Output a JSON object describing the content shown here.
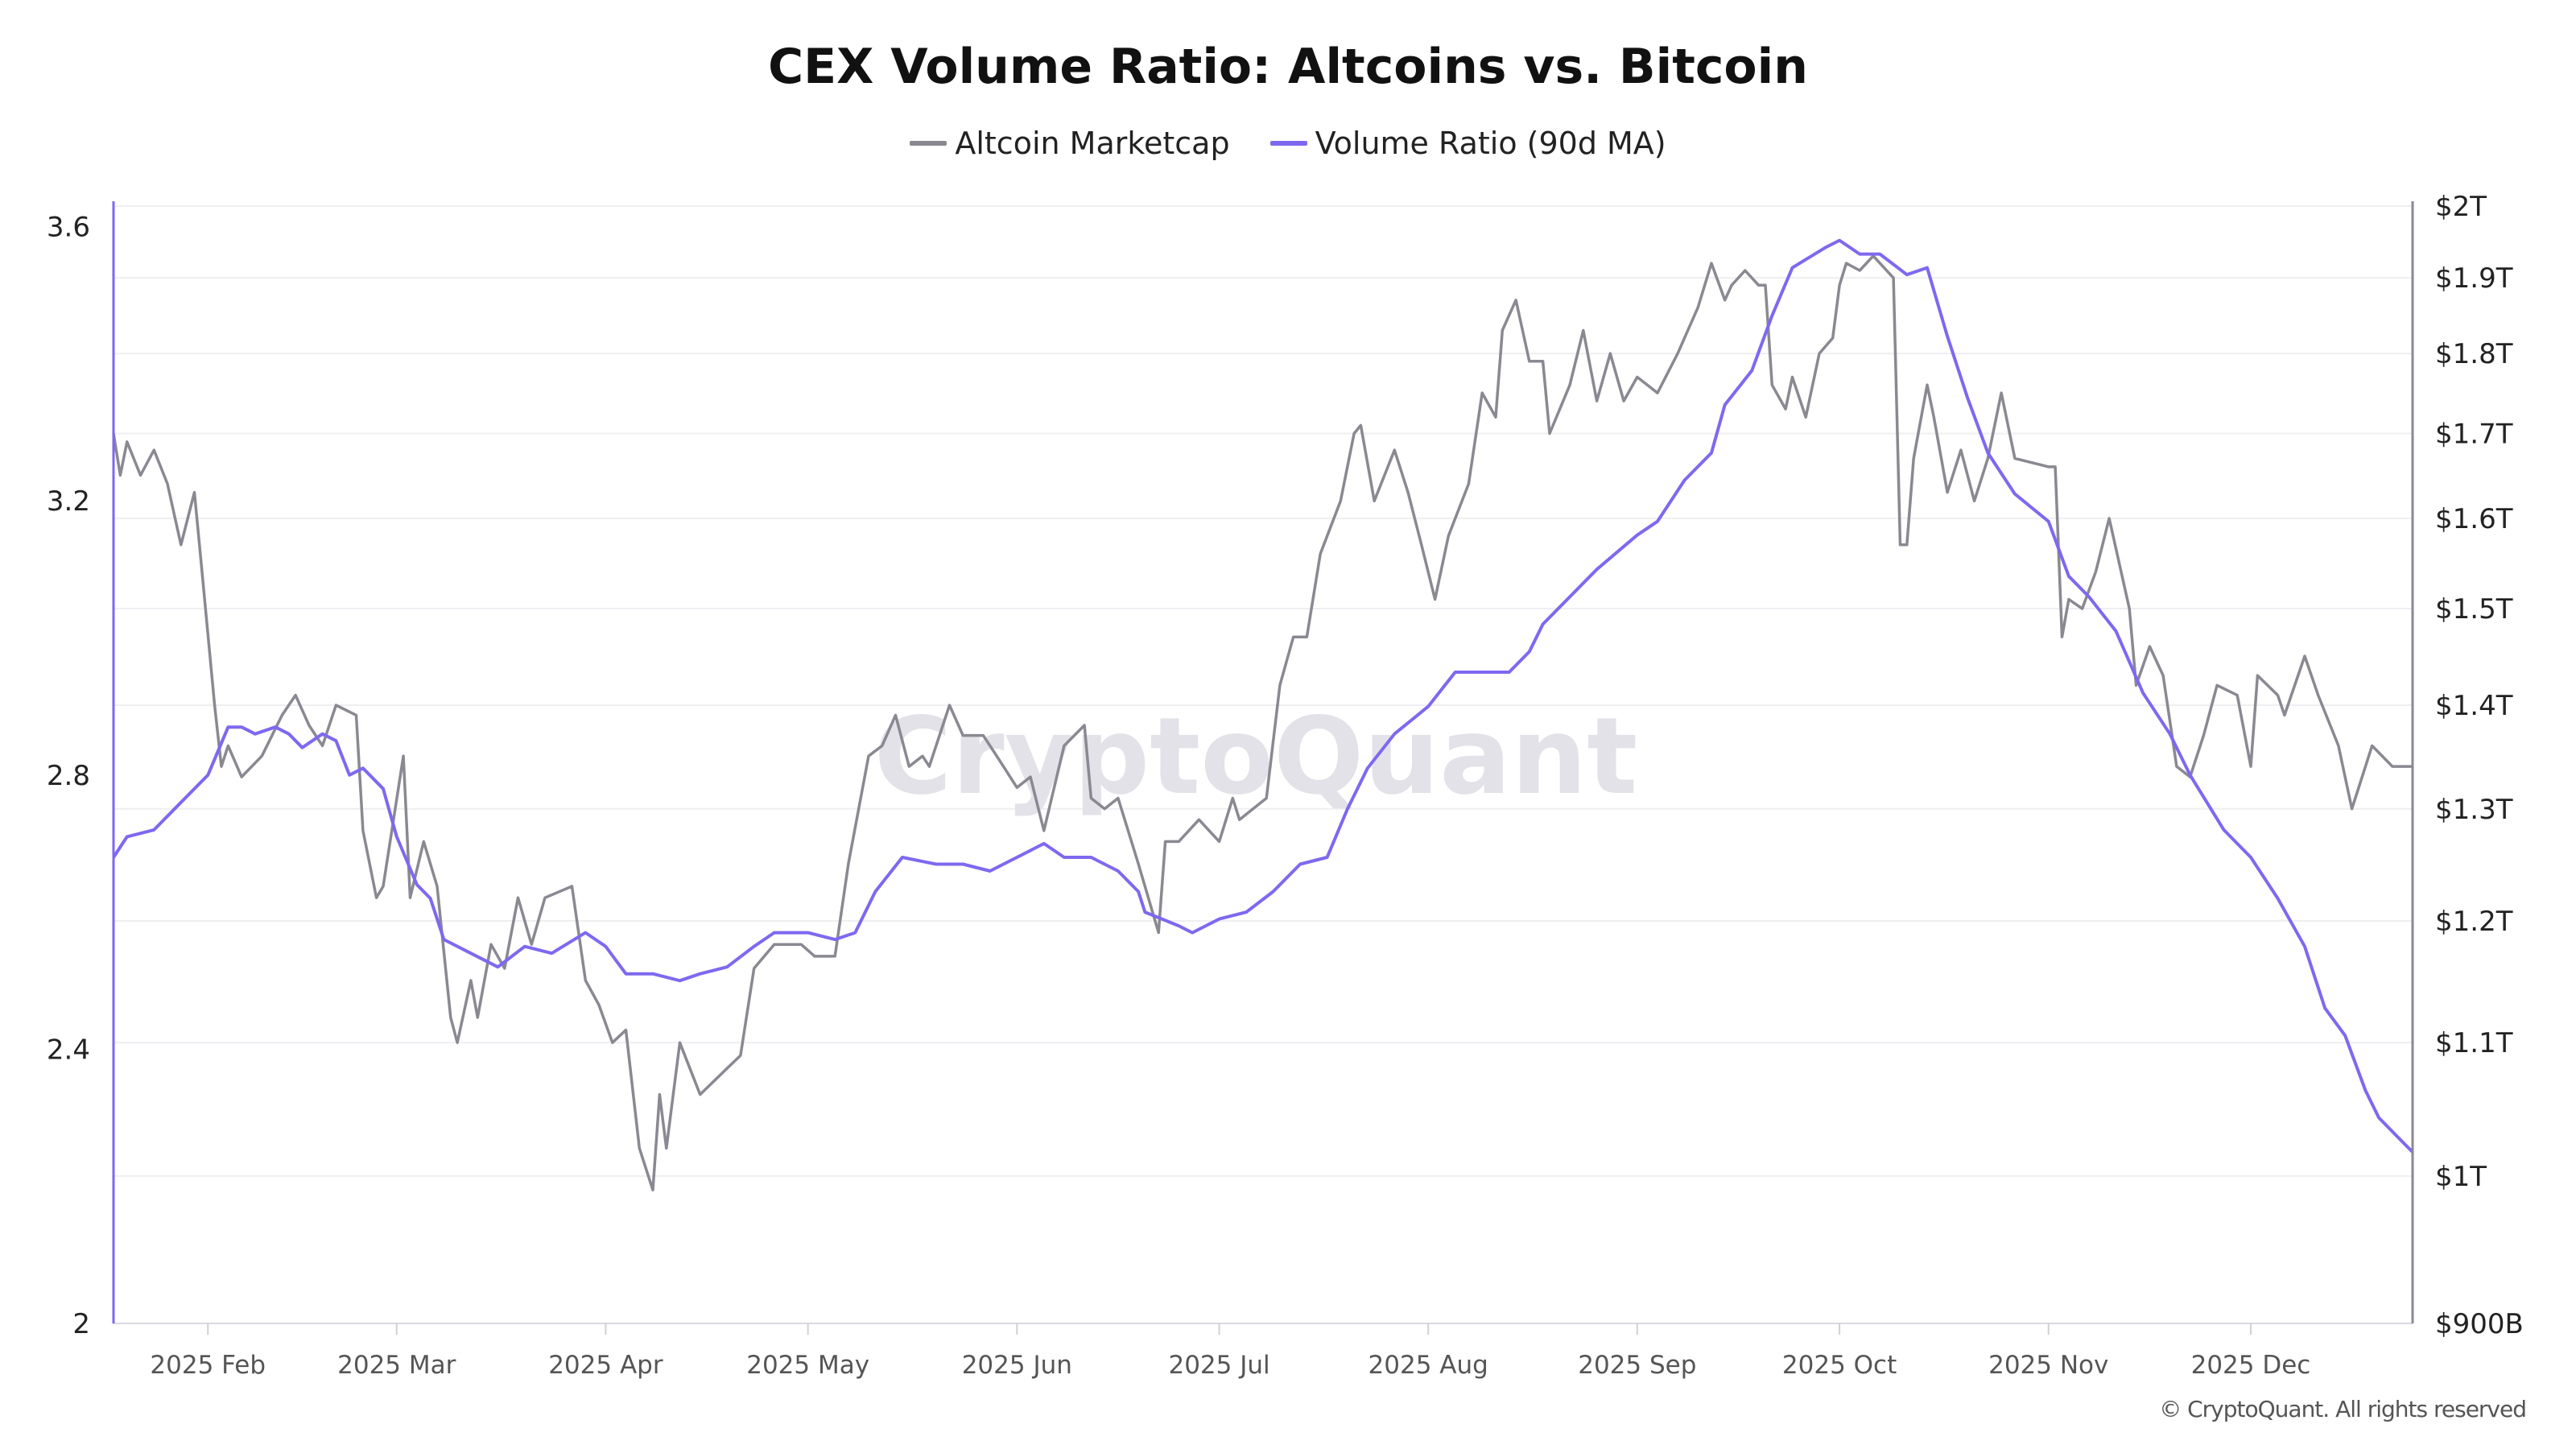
{
  "chart_data": {
    "type": "line",
    "title": "CEX Volume Ratio: Altcoins vs. Bitcoin",
    "legend_position": "top-center",
    "grid": true,
    "watermark": "CryptoQuant",
    "copyright": "© CryptoQuant. All rights reserved",
    "x_range": [
      "2025-01-18",
      "2025-12-25"
    ],
    "x_ticks": [
      {
        "date": "2025-02-01",
        "label": "2025 Feb"
      },
      {
        "date": "2025-03-01",
        "label": "2025 Mar"
      },
      {
        "date": "2025-04-01",
        "label": "2025 Apr"
      },
      {
        "date": "2025-05-01",
        "label": "2025 May"
      },
      {
        "date": "2025-06-01",
        "label": "2025 Jun"
      },
      {
        "date": "2025-07-01",
        "label": "2025 Jul"
      },
      {
        "date": "2025-08-01",
        "label": "2025 Aug"
      },
      {
        "date": "2025-09-01",
        "label": "2025 Sep"
      },
      {
        "date": "2025-10-01",
        "label": "2025 Oct"
      },
      {
        "date": "2025-11-01",
        "label": "2025 Nov"
      },
      {
        "date": "2025-12-01",
        "label": "2025 Dec"
      }
    ],
    "y_left": {
      "scale": "linear",
      "ylim": [
        2,
        3.63
      ],
      "ticks": [
        2,
        2.4,
        2.8,
        3.2,
        3.6
      ],
      "tick_labels": [
        "2",
        "2.4",
        "2.8",
        "3.2",
        "3.6"
      ]
    },
    "y_right": {
      "scale": "log",
      "ylim": [
        0.9,
        2.0
      ],
      "unit": "T",
      "ticks": [
        0.9,
        1.0,
        1.1,
        1.2,
        1.3,
        1.4,
        1.5,
        1.6,
        1.7,
        1.8,
        1.9,
        2.0
      ],
      "tick_labels": [
        "$900B",
        "$1T",
        "$1.1T",
        "$1.2T",
        "$1.3T",
        "$1.4T",
        "$1.5T",
        "$1.6T",
        "$1.7T",
        "$1.8T",
        "$1.9T",
        "$2T"
      ]
    },
    "series": [
      {
        "name": "Altcoin Marketcap",
        "axis": "right",
        "color": "#8a8891",
        "x": [
          "2025-01-18",
          "2025-01-19",
          "2025-01-20",
          "2025-01-22",
          "2025-01-24",
          "2025-01-26",
          "2025-01-28",
          "2025-01-30",
          "2025-01-31",
          "2025-02-02",
          "2025-02-03",
          "2025-02-04",
          "2025-02-06",
          "2025-02-09",
          "2025-02-12",
          "2025-02-14",
          "2025-02-16",
          "2025-02-18",
          "2025-02-20",
          "2025-02-23",
          "2025-02-24",
          "2025-02-26",
          "2025-02-27",
          "2025-03-02",
          "2025-03-03",
          "2025-03-05",
          "2025-03-07",
          "2025-03-09",
          "2025-03-10",
          "2025-03-12",
          "2025-03-13",
          "2025-03-15",
          "2025-03-17",
          "2025-03-19",
          "2025-03-21",
          "2025-03-23",
          "2025-03-27",
          "2025-03-29",
          "2025-03-31",
          "2025-04-02",
          "2025-04-04",
          "2025-04-06",
          "2025-04-08",
          "2025-04-09",
          "2025-04-10",
          "2025-04-12",
          "2025-04-15",
          "2025-04-19",
          "2025-04-21",
          "2025-04-23",
          "2025-04-26",
          "2025-04-30",
          "2025-05-02",
          "2025-05-05",
          "2025-05-07",
          "2025-05-10",
          "2025-05-12",
          "2025-05-14",
          "2025-05-16",
          "2025-05-18",
          "2025-05-19",
          "2025-05-22",
          "2025-05-24",
          "2025-05-27",
          "2025-05-29",
          "2025-06-01",
          "2025-06-03",
          "2025-06-05",
          "2025-06-08",
          "2025-06-11",
          "2025-06-12",
          "2025-06-14",
          "2025-06-16",
          "2025-06-19",
          "2025-06-22",
          "2025-06-23",
          "2025-06-25",
          "2025-06-28",
          "2025-07-01",
          "2025-07-03",
          "2025-07-04",
          "2025-07-08",
          "2025-07-10",
          "2025-07-12",
          "2025-07-14",
          "2025-07-16",
          "2025-07-19",
          "2025-07-21",
          "2025-07-22",
          "2025-07-24",
          "2025-07-27",
          "2025-07-29",
          "2025-07-31",
          "2025-08-02",
          "2025-08-04",
          "2025-08-07",
          "2025-08-09",
          "2025-08-11",
          "2025-08-12",
          "2025-08-14",
          "2025-08-16",
          "2025-08-18",
          "2025-08-19",
          "2025-08-22",
          "2025-08-24",
          "2025-08-26",
          "2025-08-28",
          "2025-08-30",
          "2025-09-01",
          "2025-09-04",
          "2025-09-07",
          "2025-09-10",
          "2025-09-12",
          "2025-09-14",
          "2025-09-15",
          "2025-09-17",
          "2025-09-19",
          "2025-09-20",
          "2025-09-21",
          "2025-09-23",
          "2025-09-24",
          "2025-09-26",
          "2025-09-28",
          "2025-09-30",
          "2025-10-01",
          "2025-10-02",
          "2025-10-04",
          "2025-10-06",
          "2025-10-09",
          "2025-10-10",
          "2025-10-11",
          "2025-10-12",
          "2025-10-14",
          "2025-10-15",
          "2025-10-17",
          "2025-10-19",
          "2025-10-21",
          "2025-10-23",
          "2025-10-25",
          "2025-10-27",
          "2025-11-01",
          "2025-11-02",
          "2025-11-03",
          "2025-11-04",
          "2025-11-06",
          "2025-11-08",
          "2025-11-10",
          "2025-11-13",
          "2025-11-14",
          "2025-11-16",
          "2025-11-18",
          "2025-11-20",
          "2025-11-22",
          "2025-11-24",
          "2025-11-26",
          "2025-11-29",
          "2025-12-01",
          "2025-12-02",
          "2025-12-05",
          "2025-12-06",
          "2025-12-09",
          "2025-12-11",
          "2025-12-14",
          "2025-12-16",
          "2025-12-19",
          "2025-12-22",
          "2025-12-25"
        ],
        "values": [
          1.7,
          1.65,
          1.69,
          1.65,
          1.68,
          1.64,
          1.57,
          1.63,
          1.55,
          1.4,
          1.34,
          1.36,
          1.33,
          1.35,
          1.39,
          1.41,
          1.38,
          1.36,
          1.4,
          1.39,
          1.28,
          1.22,
          1.23,
          1.35,
          1.22,
          1.27,
          1.23,
          1.12,
          1.1,
          1.15,
          1.12,
          1.18,
          1.16,
          1.22,
          1.18,
          1.22,
          1.23,
          1.15,
          1.13,
          1.1,
          1.11,
          1.02,
          0.99,
          1.06,
          1.02,
          1.1,
          1.06,
          1.08,
          1.09,
          1.16,
          1.18,
          1.18,
          1.17,
          1.17,
          1.25,
          1.35,
          1.36,
          1.39,
          1.34,
          1.35,
          1.34,
          1.4,
          1.37,
          1.37,
          1.35,
          1.32,
          1.33,
          1.28,
          1.36,
          1.38,
          1.31,
          1.3,
          1.31,
          1.25,
          1.19,
          1.27,
          1.27,
          1.29,
          1.27,
          1.31,
          1.29,
          1.31,
          1.42,
          1.47,
          1.47,
          1.56,
          1.62,
          1.7,
          1.71,
          1.62,
          1.68,
          1.63,
          1.57,
          1.51,
          1.58,
          1.64,
          1.75,
          1.72,
          1.83,
          1.87,
          1.79,
          1.79,
          1.7,
          1.76,
          1.83,
          1.74,
          1.8,
          1.74,
          1.77,
          1.75,
          1.8,
          1.86,
          1.92,
          1.87,
          1.89,
          1.91,
          1.89,
          1.89,
          1.76,
          1.73,
          1.77,
          1.72,
          1.8,
          1.82,
          1.89,
          1.92,
          1.91,
          1.93,
          1.9,
          1.57,
          1.57,
          1.67,
          1.76,
          1.72,
          1.63,
          1.68,
          1.62,
          1.67,
          1.75,
          1.67,
          1.66,
          1.66,
          1.47,
          1.51,
          1.5,
          1.54,
          1.6,
          1.5,
          1.42,
          1.46,
          1.43,
          1.34,
          1.33,
          1.37,
          1.42,
          1.41,
          1.34,
          1.43,
          1.41,
          1.39,
          1.45,
          1.41,
          1.36,
          1.3,
          1.36,
          1.34,
          1.34
        ]
      },
      {
        "name": "Volume Ratio (90d MA)",
        "axis": "left",
        "color": "#7f68f0",
        "x": [
          "2025-01-18",
          "2025-01-20",
          "2025-01-24",
          "2025-01-27",
          "2025-02-01",
          "2025-02-04",
          "2025-02-06",
          "2025-02-08",
          "2025-02-11",
          "2025-02-13",
          "2025-02-15",
          "2025-02-18",
          "2025-02-20",
          "2025-02-22",
          "2025-02-24",
          "2025-02-27",
          "2025-03-01",
          "2025-03-04",
          "2025-03-06",
          "2025-03-08",
          "2025-03-12",
          "2025-03-16",
          "2025-03-20",
          "2025-03-24",
          "2025-03-29",
          "2025-04-01",
          "2025-04-04",
          "2025-04-08",
          "2025-04-12",
          "2025-04-15",
          "2025-04-19",
          "2025-04-23",
          "2025-04-26",
          "2025-05-01",
          "2025-05-05",
          "2025-05-08",
          "2025-05-11",
          "2025-05-15",
          "2025-05-20",
          "2025-05-24",
          "2025-05-28",
          "2025-06-01",
          "2025-06-05",
          "2025-06-08",
          "2025-06-12",
          "2025-06-16",
          "2025-06-19",
          "2025-06-20",
          "2025-06-25",
          "2025-06-27",
          "2025-07-01",
          "2025-07-05",
          "2025-07-09",
          "2025-07-13",
          "2025-07-17",
          "2025-07-20",
          "2025-07-23",
          "2025-07-27",
          "2025-08-01",
          "2025-08-05",
          "2025-08-09",
          "2025-08-13",
          "2025-08-16",
          "2025-08-18",
          "2025-08-22",
          "2025-08-26",
          "2025-09-01",
          "2025-09-04",
          "2025-09-08",
          "2025-09-12",
          "2025-09-14",
          "2025-09-18",
          "2025-09-21",
          "2025-09-24",
          "2025-09-29",
          "2025-10-01",
          "2025-10-04",
          "2025-10-07",
          "2025-10-11",
          "2025-10-14",
          "2025-10-17",
          "2025-10-20",
          "2025-10-23",
          "2025-10-27",
          "2025-11-01",
          "2025-11-04",
          "2025-11-07",
          "2025-11-11",
          "2025-11-15",
          "2025-11-19",
          "2025-11-22",
          "2025-11-27",
          "2025-12-01",
          "2025-12-05",
          "2025-12-09",
          "2025-12-12",
          "2025-12-15",
          "2025-12-18",
          "2025-12-20",
          "2025-12-23",
          "2025-12-25"
        ],
        "values": [
          2.68,
          2.71,
          2.72,
          2.75,
          2.8,
          2.87,
          2.87,
          2.86,
          2.87,
          2.86,
          2.84,
          2.86,
          2.85,
          2.8,
          2.81,
          2.78,
          2.71,
          2.64,
          2.62,
          2.56,
          2.54,
          2.52,
          2.55,
          2.54,
          2.57,
          2.55,
          2.51,
          2.51,
          2.5,
          2.51,
          2.52,
          2.55,
          2.57,
          2.57,
          2.56,
          2.57,
          2.63,
          2.68,
          2.67,
          2.67,
          2.66,
          2.68,
          2.7,
          2.68,
          2.68,
          2.66,
          2.63,
          2.6,
          2.58,
          2.57,
          2.59,
          2.6,
          2.63,
          2.67,
          2.68,
          2.75,
          2.81,
          2.86,
          2.9,
          2.95,
          2.95,
          2.95,
          2.98,
          3.02,
          3.06,
          3.1,
          3.15,
          3.17,
          3.23,
          3.27,
          3.34,
          3.39,
          3.47,
          3.54,
          3.57,
          3.58,
          3.56,
          3.56,
          3.53,
          3.54,
          3.44,
          3.35,
          3.27,
          3.21,
          3.17,
          3.09,
          3.06,
          3.01,
          2.92,
          2.86,
          2.8,
          2.72,
          2.68,
          2.62,
          2.55,
          2.46,
          2.42,
          2.34,
          2.3,
          2.27,
          2.25
        ]
      }
    ]
  }
}
